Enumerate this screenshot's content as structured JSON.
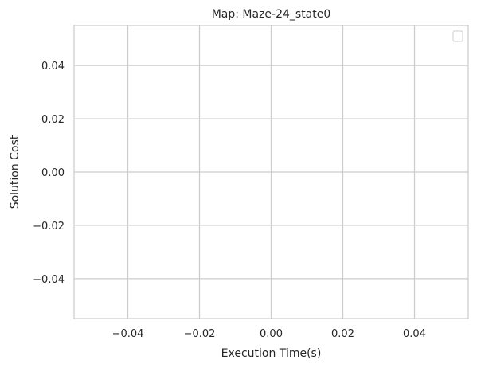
{
  "chart_data": {
    "type": "scatter",
    "title": "Map: Maze-24_state0",
    "xlabel": "Execution Time(s)",
    "ylabel": "Solution Cost",
    "xlim": [
      -0.055,
      0.055
    ],
    "ylim": [
      -0.055,
      0.055
    ],
    "xticks": [
      -0.04,
      -0.02,
      0.0,
      0.02,
      0.04
    ],
    "yticks": [
      -0.04,
      -0.02,
      0.0,
      0.02,
      0.04
    ],
    "xtick_labels": [
      "−0.04",
      "−0.02",
      "0.00",
      "0.02",
      "0.04"
    ],
    "ytick_labels": [
      "−0.04",
      "−0.02",
      "0.00",
      "0.02",
      "0.04"
    ],
    "grid": true,
    "legend": {
      "placement": "top-right",
      "entries": []
    },
    "series": [],
    "colors": {
      "background": "#ffffff",
      "grid": "#cccccc",
      "axes_edge": "#cccccc",
      "text": "#262626"
    }
  }
}
